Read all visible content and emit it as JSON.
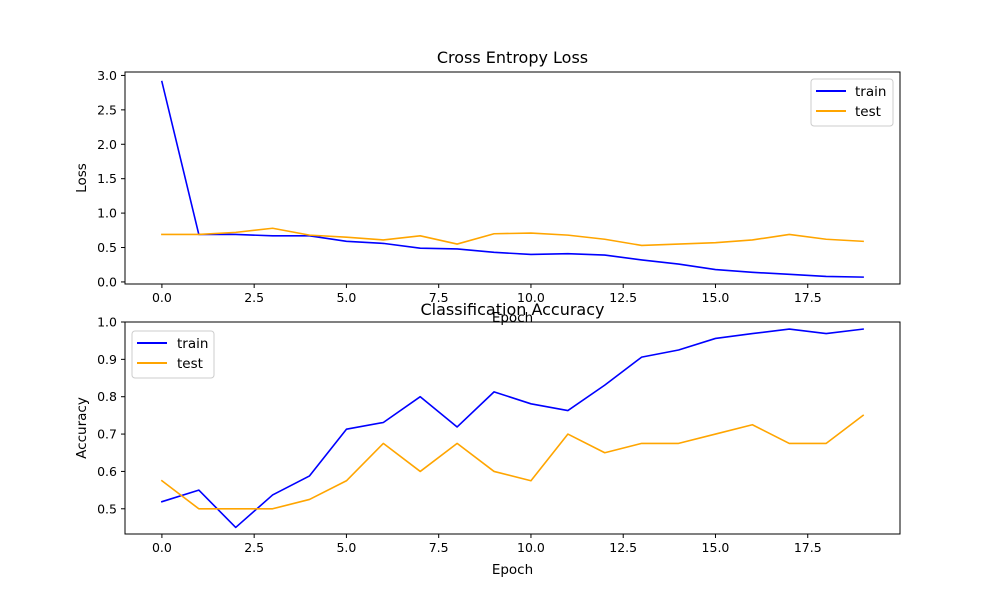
{
  "chart_data": [
    {
      "type": "line",
      "title": "Cross Entropy Loss",
      "xlabel": "Epoch",
      "ylabel": "Loss",
      "xlim": [
        -1.0,
        20.0
      ],
      "ylim": [
        -0.03,
        3.05
      ],
      "xticks": [
        0,
        2.5,
        5,
        7.5,
        10,
        12.5,
        15,
        17.5
      ],
      "xtick_labels": [
        "0.0",
        "2.5",
        "5.0",
        "7.5",
        "10.0",
        "12.5",
        "15.0",
        "17.5"
      ],
      "yticks": [
        0,
        0.5,
        1,
        1.5,
        2,
        2.5,
        3
      ],
      "ytick_labels": [
        "0.0",
        "0.5",
        "1.0",
        "1.5",
        "2.0",
        "2.5",
        "3.0"
      ],
      "legend": "top-right",
      "grid": false,
      "x": [
        0,
        1,
        2,
        3,
        4,
        5,
        6,
        7,
        8,
        9,
        10,
        11,
        12,
        13,
        14,
        15,
        16,
        17,
        18,
        19
      ],
      "series": [
        {
          "name": "train",
          "color": "#0000ff",
          "values": [
            2.91,
            0.69,
            0.69,
            0.67,
            0.67,
            0.59,
            0.56,
            0.49,
            0.48,
            0.43,
            0.4,
            0.41,
            0.39,
            0.32,
            0.26,
            0.18,
            0.14,
            0.11,
            0.08,
            0.07
          ]
        },
        {
          "name": "test",
          "color": "#ffa500",
          "values": [
            0.69,
            0.69,
            0.72,
            0.78,
            0.68,
            0.65,
            0.61,
            0.67,
            0.55,
            0.7,
            0.71,
            0.68,
            0.62,
            0.53,
            0.55,
            0.57,
            0.61,
            0.69,
            0.62,
            0.59
          ]
        }
      ]
    },
    {
      "type": "line",
      "title": "Classification Accuracy",
      "xlabel": "Epoch",
      "ylabel": "Accuracy",
      "xlim": [
        -1.0,
        20.0
      ],
      "ylim": [
        0.4325,
        1.0
      ],
      "xticks": [
        0,
        2.5,
        5,
        7.5,
        10,
        12.5,
        15,
        17.5
      ],
      "xtick_labels": [
        "0.0",
        "2.5",
        "5.0",
        "7.5",
        "10.0",
        "12.5",
        "15.0",
        "17.5"
      ],
      "yticks": [
        0.5,
        0.6,
        0.7,
        0.8,
        0.9,
        1.0
      ],
      "ytick_labels": [
        "0.5",
        "0.6",
        "0.7",
        "0.8",
        "0.9",
        "1.0"
      ],
      "legend": "top-left",
      "grid": false,
      "x": [
        0,
        1,
        2,
        3,
        4,
        5,
        6,
        7,
        8,
        9,
        10,
        11,
        12,
        13,
        14,
        15,
        16,
        17,
        18,
        19
      ],
      "series": [
        {
          "name": "train",
          "color": "#0000ff",
          "values": [
            0.519,
            0.55,
            0.45,
            0.537,
            0.588,
            0.713,
            0.731,
            0.8,
            0.719,
            0.813,
            0.781,
            0.763,
            0.831,
            0.906,
            0.925,
            0.956,
            0.969,
            0.981,
            0.969,
            0.981
          ]
        },
        {
          "name": "test",
          "color": "#ffa500",
          "values": [
            0.575,
            0.5,
            0.5,
            0.5,
            0.525,
            0.575,
            0.675,
            0.6,
            0.675,
            0.6,
            0.575,
            0.7,
            0.65,
            0.675,
            0.675,
            0.7,
            0.725,
            0.675,
            0.675,
            0.75
          ]
        }
      ]
    }
  ]
}
